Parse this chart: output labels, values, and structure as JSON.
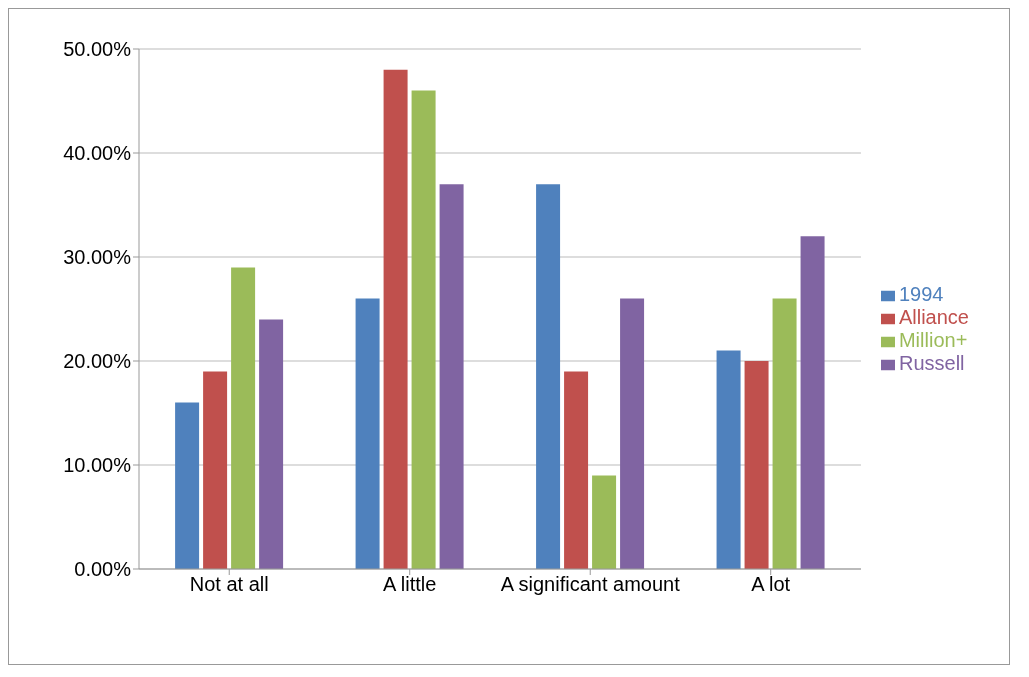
{
  "chart_data": {
    "type": "bar",
    "categories": [
      "Not at all",
      "A little",
      "A significant amount",
      "A lot"
    ],
    "series": [
      {
        "name": "1994",
        "color": "#4f81bd",
        "values": [
          16,
          26,
          37,
          21
        ]
      },
      {
        "name": "Alliance",
        "color": "#c0504d",
        "values": [
          19,
          48,
          19,
          20
        ]
      },
      {
        "name": "Million+",
        "color": "#9bbb59",
        "values": [
          29,
          46,
          9,
          26
        ]
      },
      {
        "name": "Russell",
        "color": "#8064a2",
        "values": [
          24,
          37,
          26,
          32
        ]
      }
    ],
    "ylim": [
      0,
      50
    ],
    "yticks": [
      {
        "value": 0,
        "label": "0.00%"
      },
      {
        "value": 10,
        "label": "10.00%"
      },
      {
        "value": 20,
        "label": "20.00%"
      },
      {
        "value": 30,
        "label": "30.00%"
      },
      {
        "value": 40,
        "label": "40.00%"
      },
      {
        "value": 50,
        "label": "50.00%"
      }
    ],
    "grid": "y",
    "legend": "right"
  }
}
